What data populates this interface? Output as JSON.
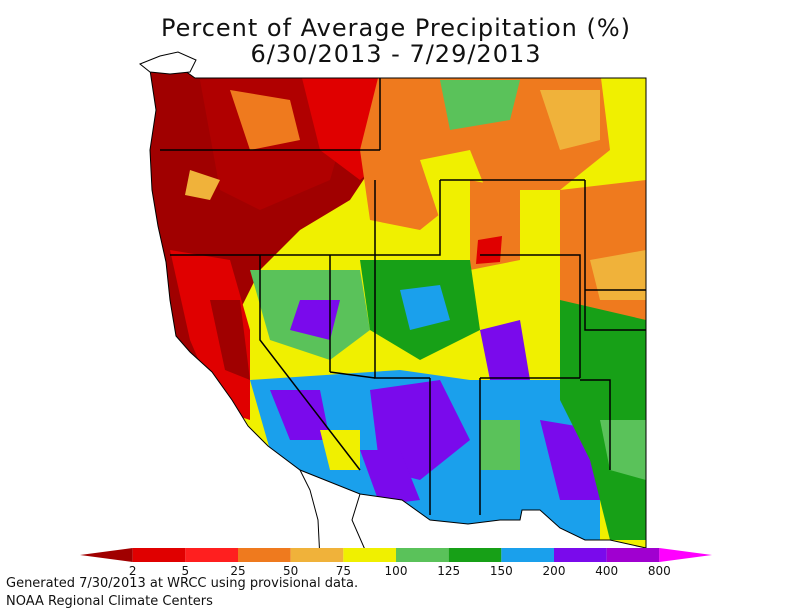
{
  "title": {
    "line1": "Percent of Average Precipitation (%)",
    "line2": "6/30/2013 - 7/29/2013"
  },
  "legend": {
    "stops": [
      "2",
      "5",
      "25",
      "50",
      "75",
      "100",
      "125",
      "150",
      "200",
      "400",
      "800"
    ],
    "colors": [
      "#a00000",
      "#e00000",
      "#ff1f1f",
      "#ef7a1e",
      "#f0b23a",
      "#f0f000",
      "#5ac25a",
      "#17a017",
      "#1aa0ec",
      "#7a0aec",
      "#a000d0",
      "#ff00ff"
    ]
  },
  "footer": {
    "line1": "Generated 7/30/2013 at WRCC using provisional data.",
    "line2": "NOAA Regional Climate Centers"
  }
}
